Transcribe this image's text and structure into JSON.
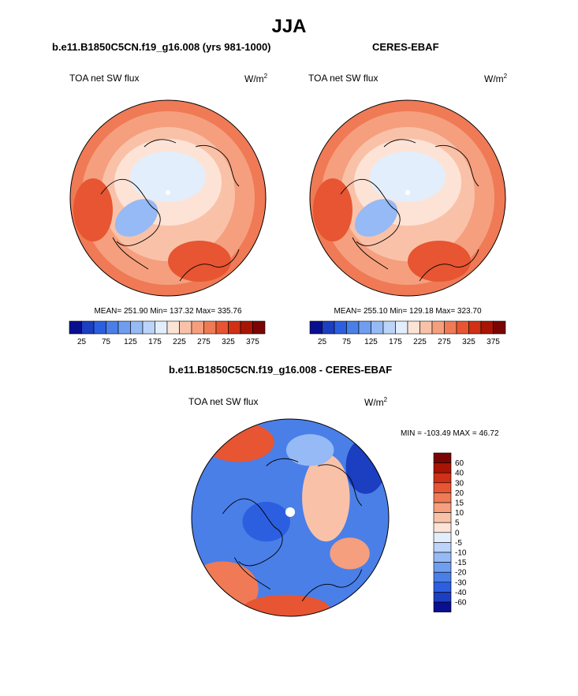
{
  "figure": {
    "season_title": "JJA",
    "colors": {
      "text": "#000000",
      "background": "#ffffff"
    }
  },
  "chart_data": [
    {
      "type": "heatmap",
      "projection": "north polar stereographic",
      "title": "b.e11.B1850C5CN.f19_g16.008 (yrs 981-1000)",
      "variable": "TOA net SW flux",
      "units": "W/m",
      "units_exp": "2",
      "stats": {
        "mean": 251.9,
        "min": 137.32,
        "max": 335.76,
        "label": "MEAN= 251.90  Min= 137.32  Max= 335.76"
      },
      "colorbar": {
        "orientation": "horizontal",
        "levels": [
          25,
          50,
          75,
          100,
          125,
          150,
          175,
          200,
          225,
          250,
          275,
          300,
          325,
          350,
          375
        ],
        "tick_labels": [
          "25",
          "75",
          "125",
          "175",
          "225",
          "275",
          "325",
          "375"
        ],
        "colors": [
          "#0a0f8f",
          "#1c3ec0",
          "#2c5fe0",
          "#4a7fe8",
          "#6f9ef0",
          "#95baf5",
          "#bcd4fa",
          "#e3eefc",
          "#fde3d6",
          "#f9c2a8",
          "#f59f7e",
          "#ef7a55",
          "#e75532",
          "#cf3016",
          "#a91505",
          "#7a0503"
        ]
      }
    },
    {
      "type": "heatmap",
      "projection": "north polar stereographic",
      "title": "CERES-EBAF",
      "variable": "TOA net SW flux",
      "units": "W/m",
      "units_exp": "2",
      "stats": {
        "mean": 255.1,
        "min": 129.18,
        "max": 323.7,
        "label": "MEAN= 255.10  Min= 129.18  Max= 323.70"
      },
      "colorbar": {
        "orientation": "horizontal",
        "levels": [
          25,
          50,
          75,
          100,
          125,
          150,
          175,
          200,
          225,
          250,
          275,
          300,
          325,
          350,
          375
        ],
        "tick_labels": [
          "25",
          "75",
          "125",
          "175",
          "225",
          "275",
          "325",
          "375"
        ],
        "colors": [
          "#0a0f8f",
          "#1c3ec0",
          "#2c5fe0",
          "#4a7fe8",
          "#6f9ef0",
          "#95baf5",
          "#bcd4fa",
          "#e3eefc",
          "#fde3d6",
          "#f9c2a8",
          "#f59f7e",
          "#ef7a55",
          "#e75532",
          "#cf3016",
          "#a91505",
          "#7a0503"
        ]
      }
    },
    {
      "type": "heatmap",
      "projection": "north polar stereographic",
      "title": "b.e11.B1850C5CN.f19_g16.008 - CERES-EBAF",
      "variable": "TOA net SW flux",
      "units": "W/m",
      "units_exp": "2",
      "stats": {
        "min": -103.49,
        "max": 46.72,
        "label": "MIN = -103.49 MAX =  46.72"
      },
      "colorbar": {
        "orientation": "vertical",
        "tick_labels": [
          "60",
          "40",
          "30",
          "20",
          "15",
          "10",
          "5",
          "0",
          "-5",
          "-10",
          "-15",
          "-20",
          "-30",
          "-40",
          "-60"
        ],
        "colors": [
          "#7a0503",
          "#a91505",
          "#cf3016",
          "#e75532",
          "#ef7a55",
          "#f59f7e",
          "#f9c2a8",
          "#fde3d6",
          "#e3eefc",
          "#bcd4fa",
          "#95baf5",
          "#6f9ef0",
          "#4a7fe8",
          "#2c5fe0",
          "#1c3ec0",
          "#0a0f8f"
        ]
      }
    }
  ]
}
